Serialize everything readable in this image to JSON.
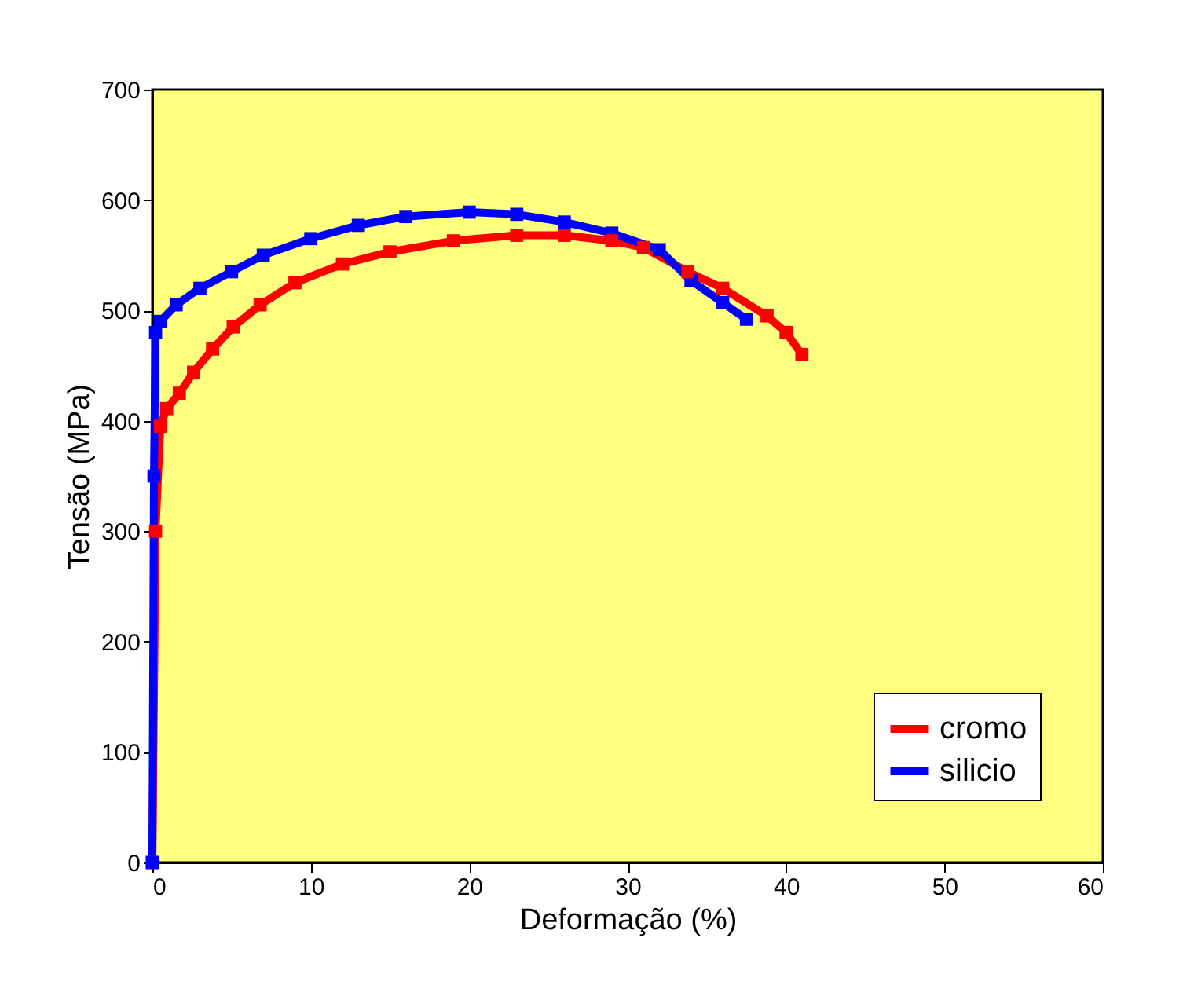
{
  "chart_data": {
    "type": "line",
    "xlabel": "Deformação (%)",
    "ylabel": "Tensão (MPa)",
    "xlim": [
      0,
      60
    ],
    "ylim": [
      0,
      700
    ],
    "xticks": [
      0,
      10,
      20,
      30,
      40,
      50,
      60
    ],
    "yticks": [
      0,
      100,
      200,
      300,
      400,
      500,
      600,
      700
    ],
    "grid": false,
    "legend": "bottom right",
    "marker": "square",
    "line_style": "solid",
    "series": [
      {
        "name": "cromo",
        "color": "#ff0000",
        "x": [
          0,
          0.2,
          0.5,
          0.9,
          1.7,
          2.6,
          3.8,
          5.1,
          6.8,
          9,
          12,
          15,
          19,
          23,
          26,
          29,
          31,
          33.8,
          36,
          38.8,
          40,
          41
        ],
        "values": [
          0,
          300,
          395,
          411,
          425,
          444,
          465,
          485,
          505,
          525,
          542,
          553,
          563,
          568,
          568,
          563,
          557,
          535,
          520,
          495,
          480,
          460
        ]
      },
      {
        "name": "silicio",
        "color": "#0000ff",
        "x": [
          0,
          0.1,
          0.2,
          0.5,
          1.5,
          3,
          5,
          7,
          10,
          13,
          16,
          20,
          23,
          26,
          29,
          32,
          34,
          36,
          37.5
        ],
        "values": [
          0,
          350,
          480,
          490,
          505,
          520,
          535,
          550,
          565,
          577,
          585,
          589,
          587,
          580,
          570,
          555,
          527,
          507,
          492
        ]
      }
    ]
  }
}
